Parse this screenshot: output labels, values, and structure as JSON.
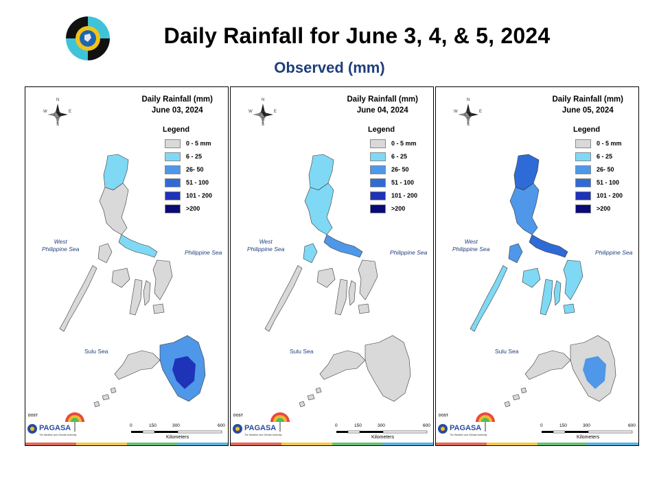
{
  "header": {
    "title": "Daily Rainfall for June 3, 4, & 5, 2024",
    "subtitle": "Observed (mm)"
  },
  "legend": {
    "title": "Legend",
    "classes": [
      {
        "label": "0 - 5 mm",
        "color": "#d9d9d9"
      },
      {
        "label": "6 - 25",
        "color": "#7fd9f5"
      },
      {
        "label": "26- 50",
        "color": "#4f97e8"
      },
      {
        "label": "51 - 100",
        "color": "#2f6bd6"
      },
      {
        "label": "101 - 200",
        "color": "#1e33b8"
      },
      {
        "label": ">200",
        "color": "#0a0a78"
      }
    ]
  },
  "labels": {
    "west_sea_line1": "West",
    "west_sea_line2": "Philippine Sea",
    "east_sea": "Philippine Sea",
    "sulu_sea": "Sulu Sea",
    "scale_0": "0",
    "scale_150": "150",
    "scale_300": "300",
    "scale_600": "600",
    "scale_units": "Kilometers",
    "compass_n": "N",
    "compass_s": "S",
    "compass_e": "E",
    "compass_w": "W",
    "pagasa_dost": "DOST",
    "pagasa_name": "PAGASA",
    "pagasa_tagline": "The Weather and Climate Authority"
  },
  "panels": [
    {
      "title_line1": "Daily Rainfall (mm)",
      "date": "June 03, 2024",
      "luzon": "#d9d9d9",
      "nluzon": "#7fd9f5",
      "bicol": "#7fd9f5",
      "visayas": "#d9d9d9",
      "mindanao_east": "#4f97e8",
      "mindanao_core": "#1e33b8",
      "mindanao_west": "#d9d9d9"
    },
    {
      "title_line1": "Daily Rainfall (mm)",
      "date": "June 04, 2024",
      "luzon": "#7fd9f5",
      "nluzon": "#7fd9f5",
      "bicol": "#4f97e8",
      "visayas": "#d9d9d9",
      "mindanao_east": "#d9d9d9",
      "mindanao_core": "#d9d9d9",
      "mindanao_west": "#d9d9d9"
    },
    {
      "title_line1": "Daily Rainfall (mm)",
      "date": "June 05, 2024",
      "luzon": "#4f97e8",
      "nluzon": "#2f6bd6",
      "bicol": "#2f6bd6",
      "visayas": "#7fd9f5",
      "mindanao_east": "#d9d9d9",
      "mindanao_core": "#4f97e8",
      "mindanao_west": "#d9d9d9"
    }
  ]
}
